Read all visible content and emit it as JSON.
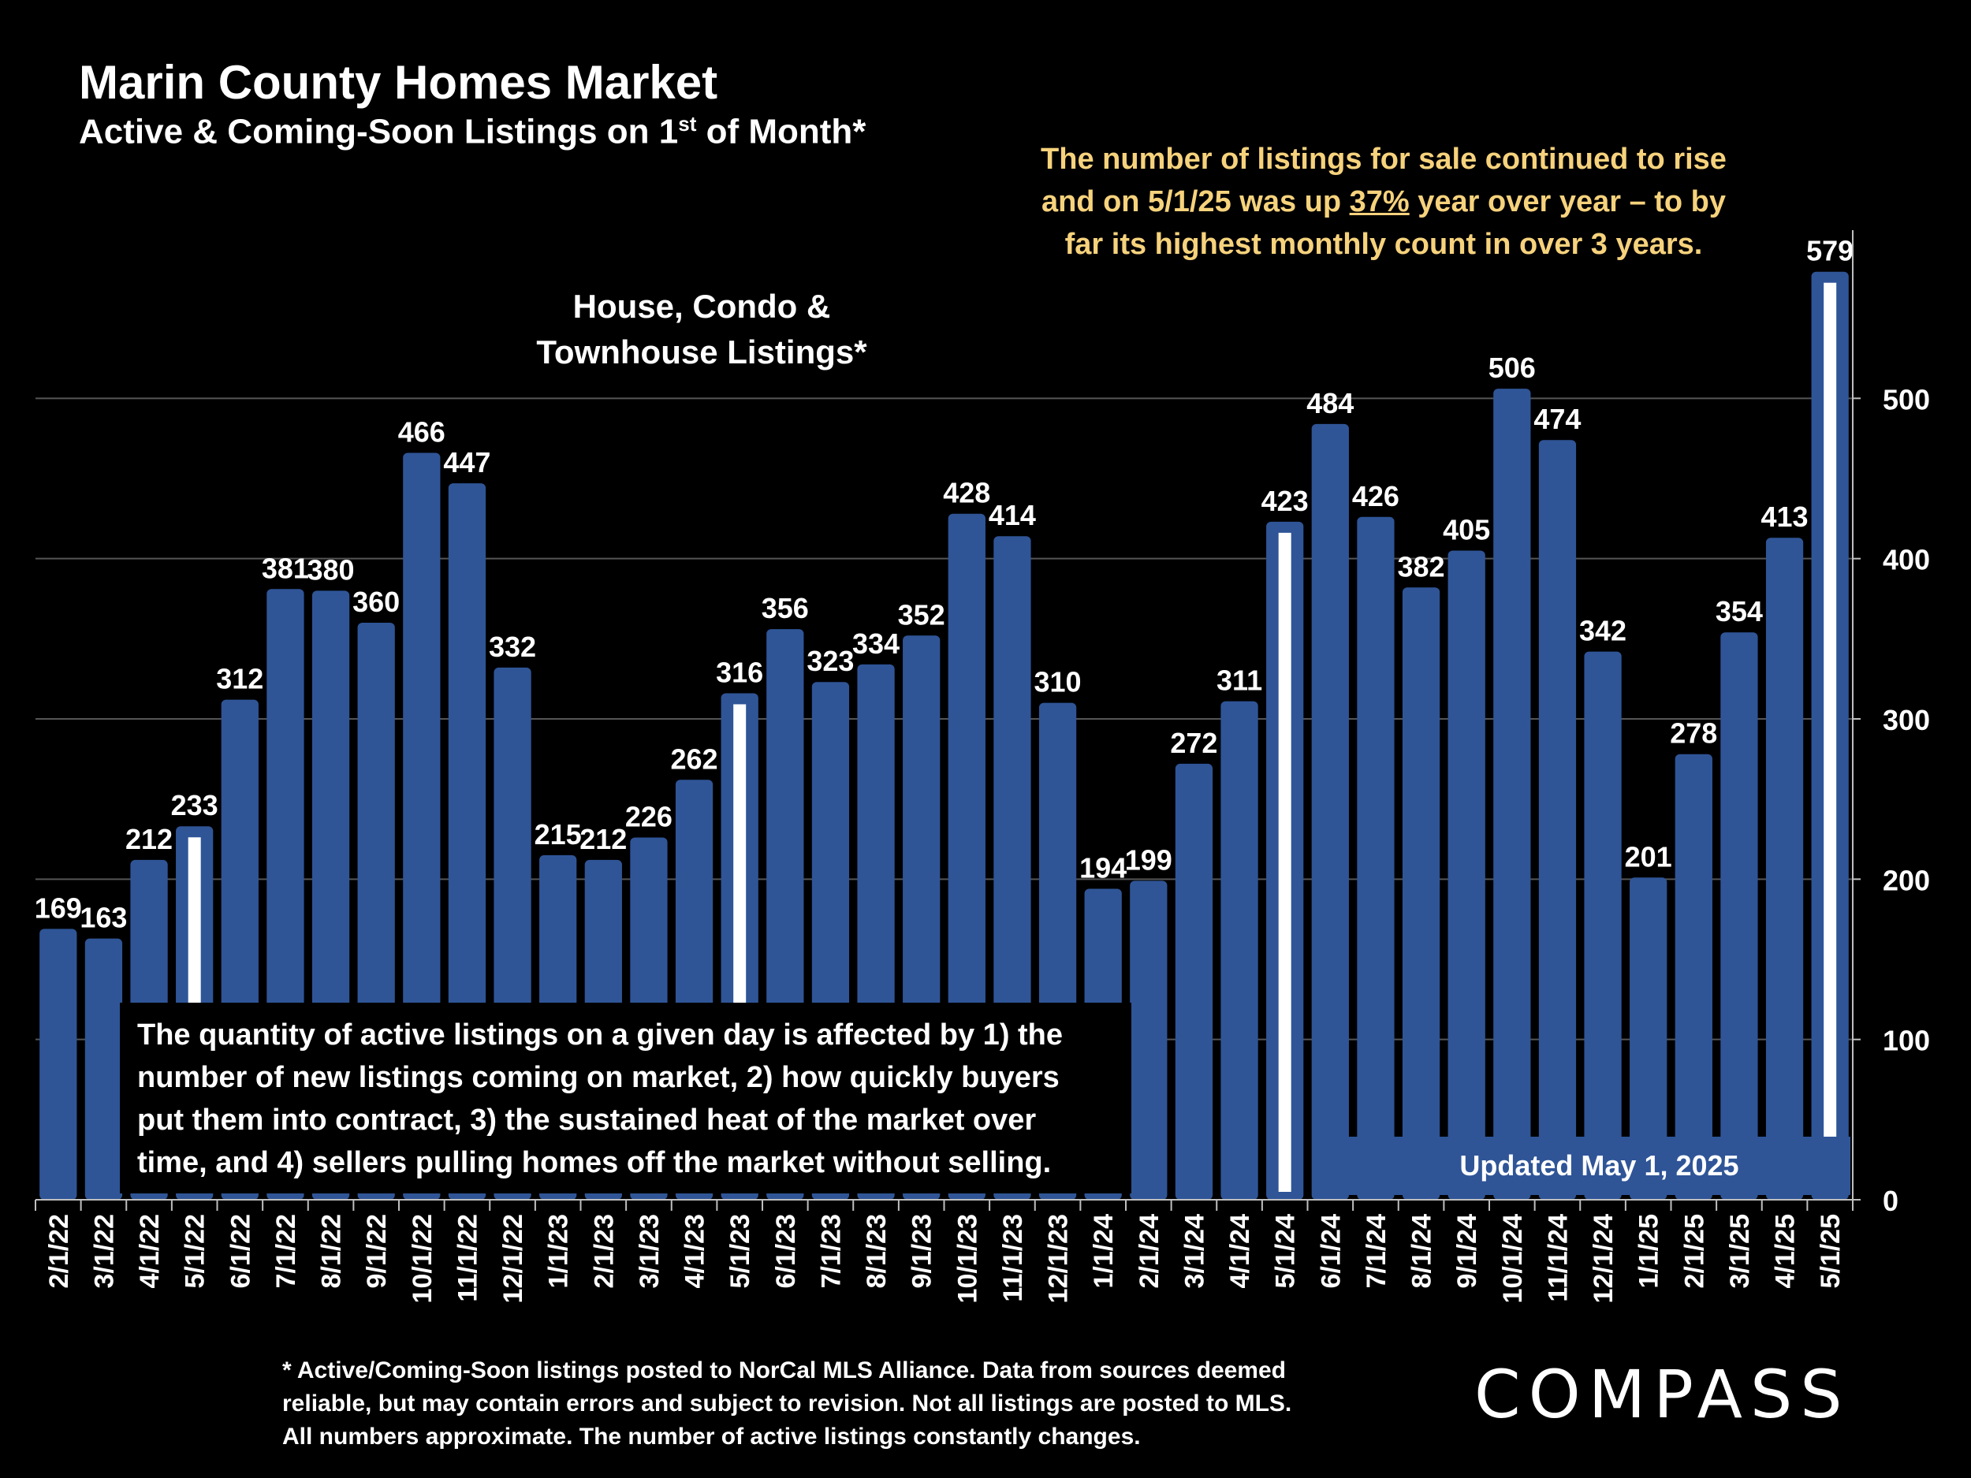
{
  "chart_data": {
    "type": "bar",
    "title": "Marin County Homes Market",
    "subtitle_main": "Active & Coming-Soon Listings on 1",
    "subtitle_sup": "st",
    "subtitle_end": " of Month*",
    "series_label_line1": "House, Condo &",
    "series_label_line2": "Townhouse Listings*",
    "categories": [
      "2/1/22",
      "3/1/22",
      "4/1/22",
      "5/1/22",
      "6/1/22",
      "7/1/22",
      "8/1/22",
      "9/1/22",
      "10/1/22",
      "11/1/22",
      "12/1/22",
      "1/1/23",
      "2/1/23",
      "3/1/23",
      "4/1/23",
      "5/1/23",
      "6/1/23",
      "7/1/23",
      "8/1/23",
      "9/1/23",
      "10/1/23",
      "11/1/23",
      "12/1/23",
      "1/1/24",
      "2/1/24",
      "3/1/24",
      "4/1/24",
      "5/1/24",
      "6/1/24",
      "7/1/24",
      "8/1/24",
      "9/1/24",
      "10/1/24",
      "11/1/24",
      "12/1/24",
      "1/1/25",
      "2/1/25",
      "3/1/25",
      "4/1/25",
      "5/1/25"
    ],
    "values": [
      169,
      163,
      212,
      233,
      312,
      381,
      380,
      360,
      466,
      447,
      332,
      215,
      212,
      226,
      262,
      316,
      356,
      323,
      334,
      352,
      428,
      414,
      310,
      194,
      199,
      272,
      311,
      423,
      484,
      426,
      382,
      405,
      506,
      474,
      342,
      201,
      278,
      354,
      413,
      579
    ],
    "highlighted_categories": [
      "5/1/22",
      "5/1/23",
      "5/1/24",
      "5/1/25"
    ],
    "ylim": [
      0,
      600
    ],
    "yticks": [
      0,
      100,
      200,
      300,
      400,
      500
    ],
    "y_axis_position": "right",
    "grid": true,
    "bar_color": "#2f5597",
    "highlight_color": "#ffffff"
  },
  "callout": {
    "line1": "The number of listings for sale continued to rise",
    "line2_pre": "and on 5/1/25 was up ",
    "line2_pct": "37%",
    "line2_post": " year over year – to by",
    "line3": "far its highest monthly count in over 3 years.",
    "color": "#f6d27c"
  },
  "info_box": {
    "text": "The quantity of active listings on a given day is affected by 1) the number of new listings coming on market, 2) how quickly buyers put them into contract, 3) the sustained heat of the market over time, and 4) sellers pulling homes off the market without selling."
  },
  "updated": "Updated May 1, 2025",
  "footnote": {
    "line1": "* Active/Coming-Soon listings posted to NorCal MLS Alliance.  Data from sources deemed",
    "line2": "reliable, but may contain errors and subject to revision.  Not all listings are posted to MLS.",
    "line3": "All numbers approximate. The number of active listings constantly changes."
  },
  "logo": "COMPASS"
}
